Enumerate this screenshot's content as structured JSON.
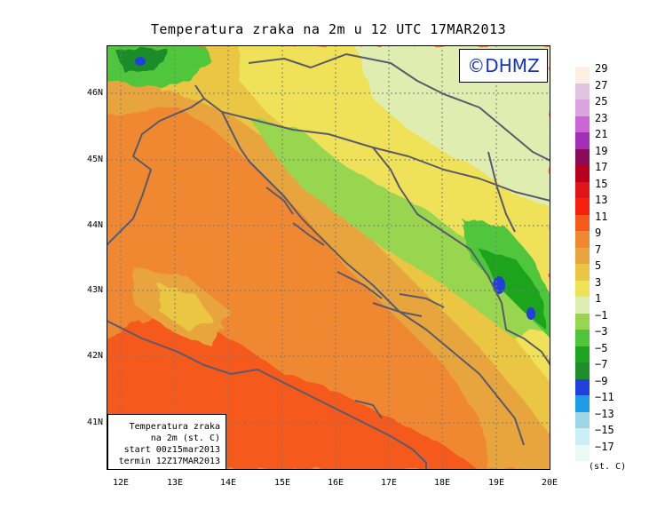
{
  "title": "Temperatura zraka na 2m u 12 UTC 17MAR2013",
  "logo_text": "©DHMZ",
  "info_box": [
    "Temperatura zraka",
    "na 2m (st. C)",
    "start 00z15mar2013",
    "termin 12Z17MAR2013"
  ],
  "lat_labels": [
    "46N",
    "45N",
    "44N",
    "43N",
    "42N",
    "41N"
  ],
  "lon_labels": [
    "12E",
    "13E",
    "14E",
    "15E",
    "16E",
    "17E",
    "18E",
    "19E",
    "20E"
  ],
  "legend": {
    "unit": "(st. C)",
    "labels": [
      "29",
      "27",
      "25",
      "23",
      "21",
      "19",
      "17",
      "15",
      "13",
      "11",
      "9",
      "7",
      "5",
      "3",
      "1",
      "−1",
      "−3",
      "−5",
      "−7",
      "−9",
      "−11",
      "−13",
      "−15",
      "−17"
    ],
    "colors": [
      "#fcefe3",
      "#e0c4df",
      "#dba4e0",
      "#cc66d6",
      "#a02eb6",
      "#8c0a5a",
      "#b4001c",
      "#e2141a",
      "#f8200d",
      "#f55a1c",
      "#ef8830",
      "#e9a53d",
      "#ebc642",
      "#efe258",
      "#dfeeb0",
      "#98d650",
      "#4fc63a",
      "#1ca41e",
      "#1f8c2c",
      "#2140da",
      "#1e9ce6",
      "#9ed6e8",
      "#cdeef6",
      "#ebfaf8"
    ]
  }
}
